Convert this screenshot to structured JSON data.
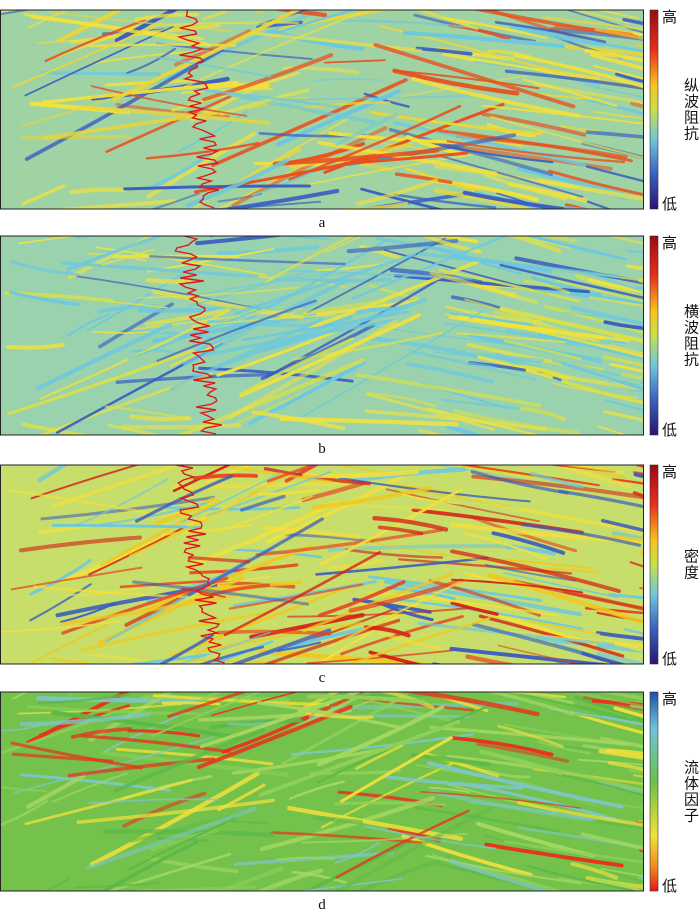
{
  "panels": [
    {
      "caption": "a",
      "colorbar": {
        "title": "纵波阻抗",
        "top": "高",
        "bottom": "低"
      }
    },
    {
      "caption": "b",
      "colorbar": {
        "title": "横波阻抗",
        "top": "高",
        "bottom": "低"
      }
    },
    {
      "caption": "c",
      "colorbar": {
        "title": "密度",
        "top": "高",
        "bottom": "低"
      }
    },
    {
      "caption": "d",
      "colorbar": {
        "title": "流体因子",
        "top": "高",
        "bottom": "低"
      }
    }
  ]
}
